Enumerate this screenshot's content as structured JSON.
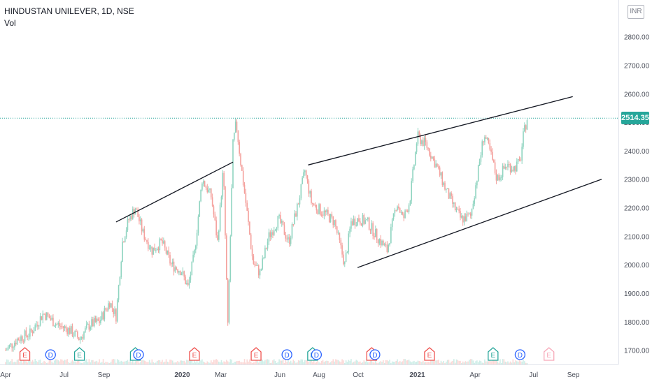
{
  "symbol_title": "HINDUSTAN UNILEVER, 1D, NSE",
  "volume_label": "Vol",
  "currency": "INR",
  "last_price_label": "2514.35",
  "colors": {
    "up": "#26a69a",
    "down": "#ef5350",
    "up_candle": "#8fd4c0",
    "down_candle": "#f4a09c",
    "trendline": "#131722",
    "last_price_line": "#26a69a",
    "axis_text": "#4a4e59",
    "dividend_marker": "#2962ff",
    "earnings_marker": "#ef5350",
    "earnings_reported_marker": "#26a69a"
  },
  "chart_data": {
    "type": "line",
    "title": "HINDUSTAN UNILEVER, 1D, NSE",
    "xlabel": "",
    "ylabel": "",
    "x_ticks": [
      "Apr",
      "Jul",
      "Sep",
      "2020",
      "Mar",
      "Jun",
      "Aug",
      "Oct",
      "2021",
      "Apr",
      "Jul",
      "Sep"
    ],
    "y_ticks": [
      "2800.00",
      "2700.00",
      "2600.00",
      "2500.00",
      "2400.00",
      "2300.00",
      "2200.00",
      "2100.00",
      "2000.00",
      "1900.00",
      "1800.00",
      "1700.00"
    ],
    "ylim": [
      1650,
      2880
    ],
    "grid": false,
    "last_price": 2514.35,
    "series": [
      {
        "x": [
          "2019-04-01",
          "2019-04-20",
          "2019-05-10",
          "2019-05-30",
          "2019-06-20",
          "2019-07-10",
          "2019-07-25",
          "2019-08-10",
          "2019-08-25",
          "2019-09-10",
          "2019-09-20",
          "2019-09-30",
          "2019-10-10",
          "2019-10-20",
          "2019-11-01",
          "2019-11-15",
          "2019-11-30",
          "2019-12-15",
          "2019-12-30",
          "2020-01-10",
          "2020-01-20",
          "2020-02-01",
          "2020-02-15",
          "2020-02-25",
          "2020-03-05",
          "2020-03-12",
          "2020-03-20",
          "2020-03-25",
          "2020-04-01",
          "2020-04-10",
          "2020-04-20",
          "2020-05-01",
          "2020-05-15",
          "2020-05-30",
          "2020-06-15",
          "2020-06-30",
          "2020-07-10",
          "2020-07-20",
          "2020-07-28",
          "2020-08-10",
          "2020-08-25",
          "2020-09-10",
          "2020-09-20",
          "2020-10-01",
          "2020-10-15",
          "2020-10-30",
          "2020-11-15",
          "2020-11-30",
          "2020-12-10",
          "2020-12-20",
          "2021-01-01",
          "2021-01-15",
          "2021-01-30",
          "2021-02-15",
          "2021-02-28",
          "2021-03-10",
          "2021-03-25",
          "2021-04-05",
          "2021-04-15",
          "2021-04-25",
          "2021-05-05",
          "2021-05-20",
          "2021-06-01",
          "2021-06-10",
          "2021-06-15",
          "2021-06-21"
        ],
        "values": [
          1700,
          1740,
          1760,
          1830,
          1790,
          1770,
          1740,
          1790,
          1800,
          1870,
          1820,
          2080,
          2160,
          2200,
          2110,
          2050,
          2080,
          2000,
          1980,
          1920,
          2040,
          2300,
          2240,
          2080,
          2340,
          1780,
          2420,
          2500,
          2360,
          2200,
          2010,
          1970,
          2100,
          2160,
          2080,
          2220,
          2330,
          2220,
          2200,
          2180,
          2150,
          2000,
          2150,
          2160,
          2150,
          2100,
          2050,
          2220,
          2160,
          2220,
          2450,
          2420,
          2350,
          2260,
          2200,
          2160,
          2170,
          2320,
          2460,
          2390,
          2300,
          2350,
          2340,
          2360,
          2450,
          2514.35
        ]
      }
    ],
    "trendlines": [
      {
        "points": [
          [
            "2019-09-20",
            2150
          ],
          [
            "2020-03-20",
            2360
          ]
        ]
      },
      {
        "points": [
          [
            "2020-07-15",
            2350
          ],
          [
            "2021-08-31",
            2590
          ]
        ]
      },
      {
        "points": [
          [
            "2020-09-30",
            1990
          ],
          [
            "2021-10-15",
            2300
          ]
        ]
      }
    ],
    "event_markers": [
      {
        "x": "2019-05-01",
        "glyph": "E",
        "kind": "earnings"
      },
      {
        "x": "2019-06-10",
        "glyph": "D",
        "kind": "dividend"
      },
      {
        "x": "2019-07-25",
        "glyph": "E",
        "kind": "earnings_reported"
      },
      {
        "x": "2019-10-20",
        "glyph": "E",
        "kind": "earnings_reported"
      },
      {
        "x": "2019-10-25",
        "glyph": "D",
        "kind": "dividend"
      },
      {
        "x": "2020-01-20",
        "glyph": "E",
        "kind": "earnings"
      },
      {
        "x": "2020-04-25",
        "glyph": "E",
        "kind": "earnings"
      },
      {
        "x": "2020-06-12",
        "glyph": "D",
        "kind": "dividend"
      },
      {
        "x": "2020-07-22",
        "glyph": "E",
        "kind": "earnings_reported"
      },
      {
        "x": "2020-07-28",
        "glyph": "D",
        "kind": "dividend"
      },
      {
        "x": "2020-10-22",
        "glyph": "E",
        "kind": "earnings"
      },
      {
        "x": "2020-10-27",
        "glyph": "D",
        "kind": "dividend"
      },
      {
        "x": "2021-01-20",
        "glyph": "E",
        "kind": "earnings"
      },
      {
        "x": "2021-04-29",
        "glyph": "E",
        "kind": "earnings_reported"
      },
      {
        "x": "2021-06-10",
        "glyph": "D",
        "kind": "dividend"
      },
      {
        "x": "2021-07-25",
        "glyph": "E",
        "kind": "earnings_upcoming"
      }
    ]
  }
}
